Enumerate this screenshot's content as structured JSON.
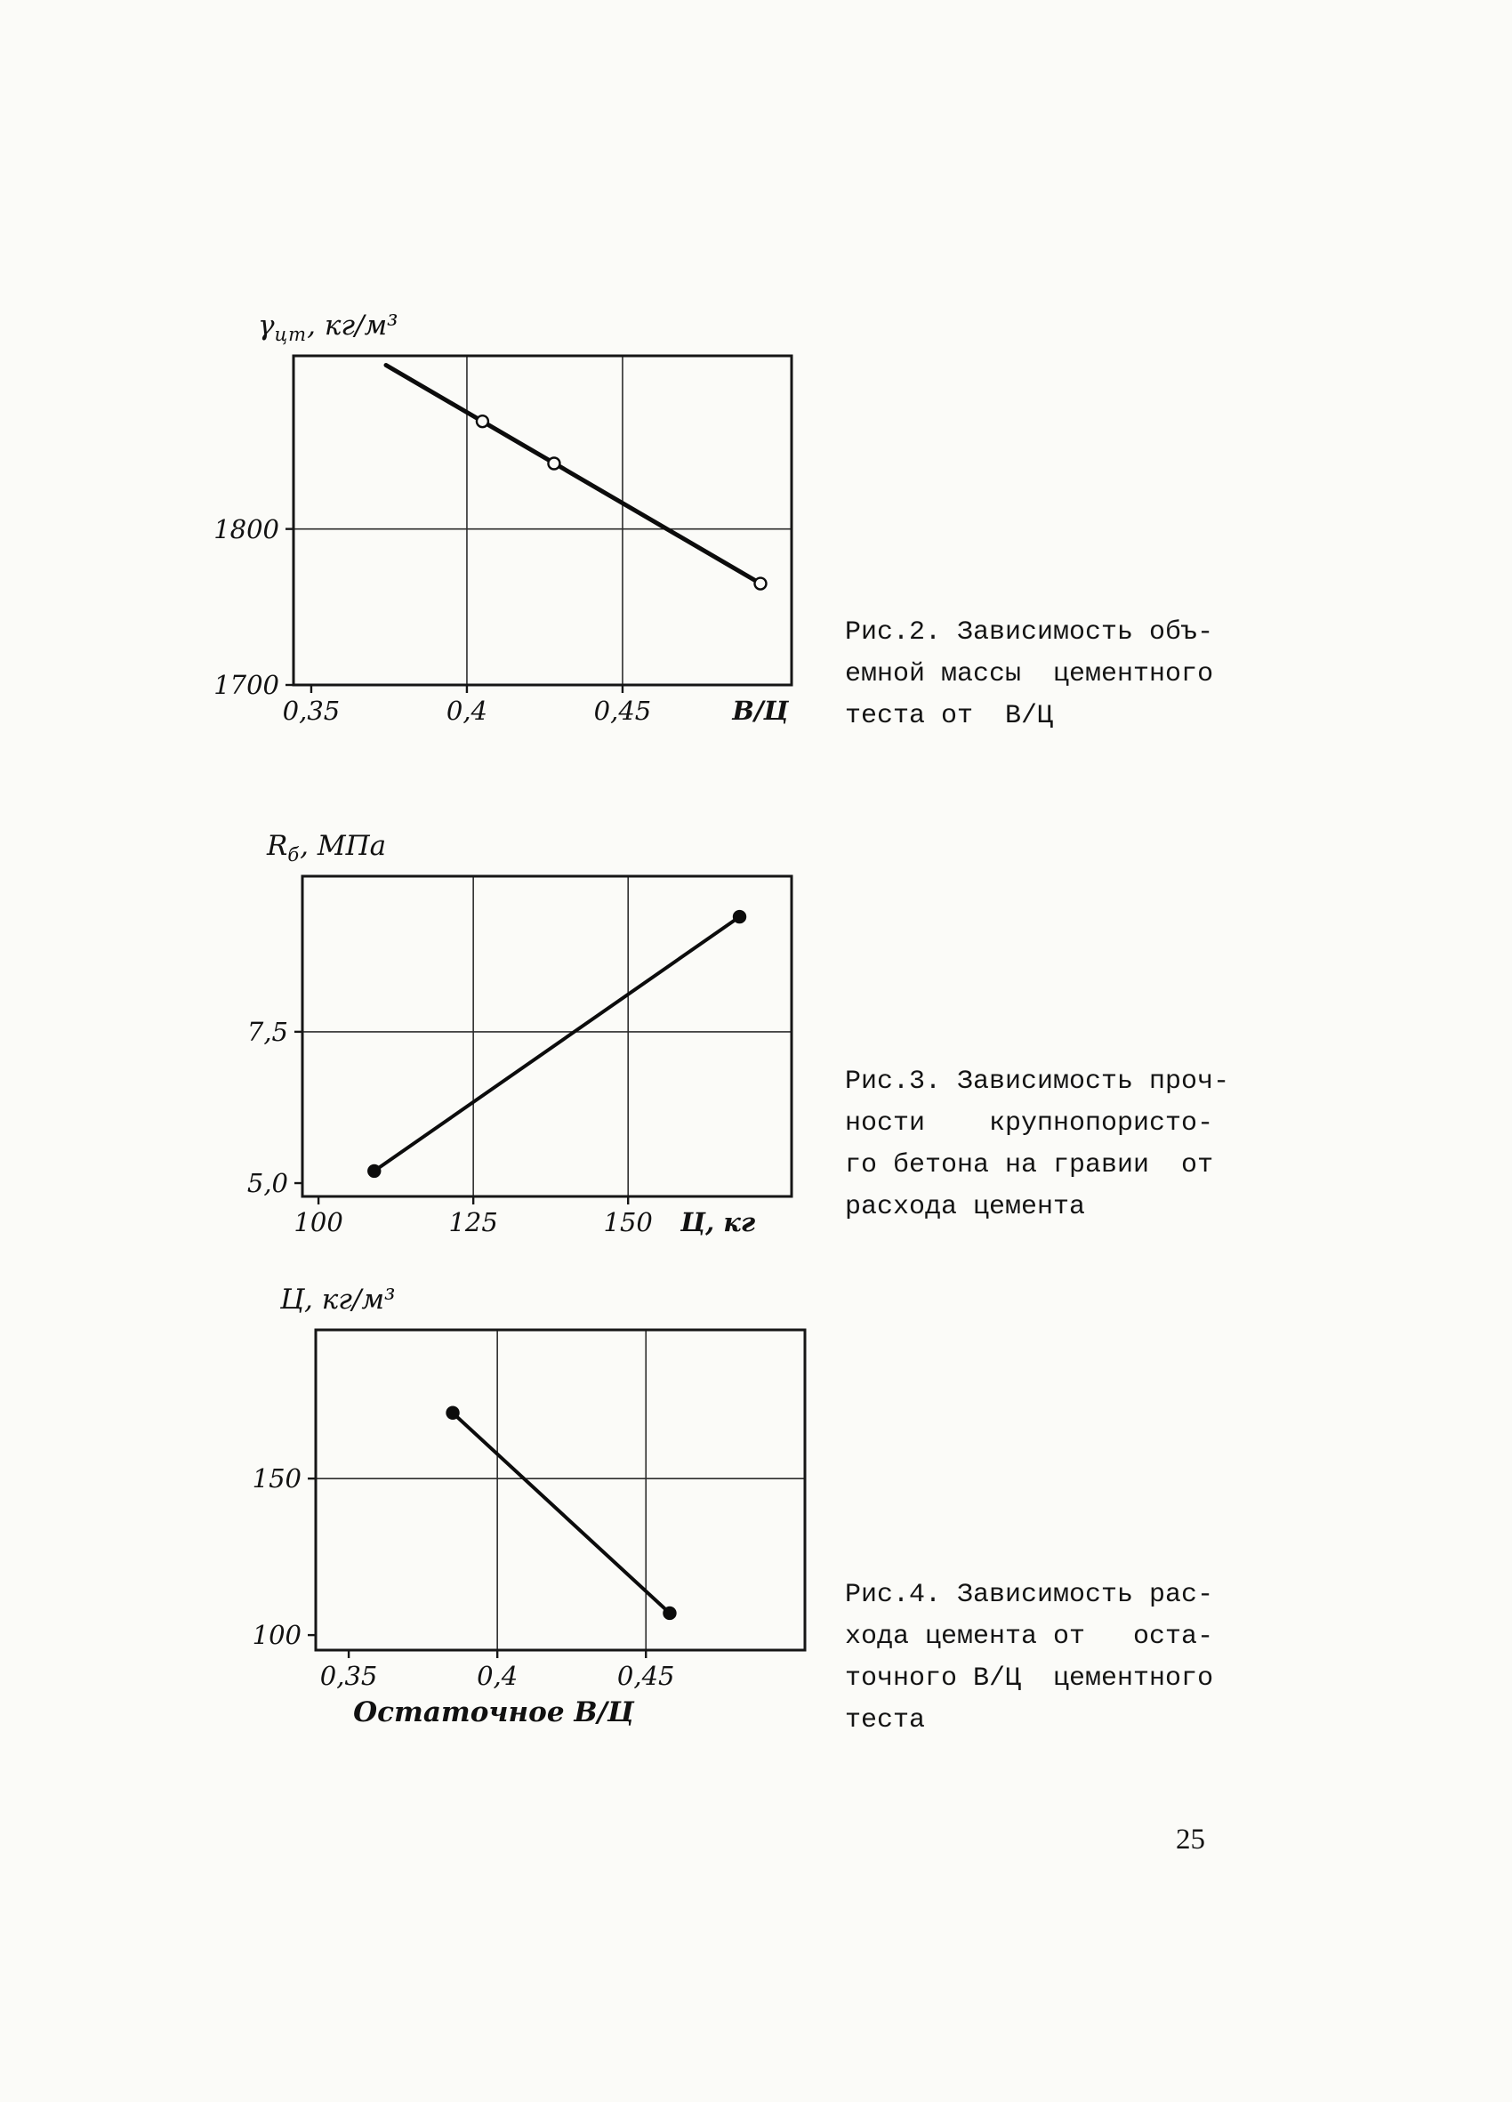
{
  "page": {
    "number": "25"
  },
  "chart_data": [
    {
      "id": "fig-2",
      "type": "line",
      "title": "Зависимость объемной массы цементного теста от В/Ц",
      "y_title": {
        "main": "γ",
        "sub": "цт",
        "rest": ", кг/м³"
      },
      "x_label": "В/Ц",
      "ylabel": "объемная масса цементного теста, кг/м³",
      "x_range": [
        0.3443,
        0.5043
      ],
      "y_range": [
        1700,
        1911
      ],
      "grid_x": [
        0.4,
        0.45
      ],
      "grid_y": [
        1800
      ],
      "x_ticks": [
        {
          "label": "0,35",
          "value": 0.35
        },
        {
          "label": "0,4",
          "value": 0.4
        },
        {
          "label": "0,45",
          "value": 0.45
        },
        {
          "label": "В/Ц",
          "value": 0.4943,
          "tick": false,
          "em": true
        }
      ],
      "y_ticks": [
        {
          "label": "1800",
          "value": 1800
        },
        {
          "label": "1700",
          "value": 1700
        }
      ],
      "line": [
        [
          0.374,
          1905
        ],
        [
          0.4943,
          1765
        ]
      ],
      "markers": [
        [
          0.405,
          1869
        ],
        [
          0.428,
          1842
        ],
        [
          0.4943,
          1765
        ]
      ],
      "marker_style": "open",
      "line_width": 5
    },
    {
      "id": "fig-3",
      "type": "line",
      "title": "Зависимость прочности крупнопористого бетона на гравии от расхода цемента",
      "y_title": {
        "main": "R",
        "sub": "б",
        "rest": ", МПа"
      },
      "x_label": "Ц, кг",
      "ylabel": "прочность бетона, МПа",
      "x_range": [
        97.4,
        176.4
      ],
      "y_range": [
        4.78,
        10.07
      ],
      "grid_x": [
        125,
        150
      ],
      "grid_y": [
        7.5
      ],
      "x_ticks": [
        {
          "label": "100",
          "value": 100
        },
        {
          "label": "125",
          "value": 125
        },
        {
          "label": "150",
          "value": 150
        },
        {
          "label": "Ц, кг",
          "value": 164.5,
          "tick": false,
          "em": true
        }
      ],
      "y_ticks": [
        {
          "label": "7,5",
          "value": 7.5
        },
        {
          "label": "5,0",
          "value": 5.0
        }
      ],
      "line": [
        [
          109,
          5.2
        ],
        [
          168,
          9.4
        ]
      ],
      "markers": [
        [
          109,
          5.2
        ],
        [
          168,
          9.4
        ]
      ],
      "marker_style": "filled",
      "line_width": 4
    },
    {
      "id": "fig-4",
      "type": "line",
      "title": "Зависимость расхода цемента от остаточного В/Ц цементного теста",
      "y_title": {
        "main": "Ц",
        "sub": "",
        "rest": ", кг/м³"
      },
      "x_title": "Остаточное В/Ц",
      "ylabel": "расход цемента, кг/м³",
      "x_range": [
        0.3389,
        0.5035
      ],
      "y_range": [
        95.2,
        197.5
      ],
      "grid_x": [
        0.4,
        0.45
      ],
      "grid_y": [
        150
      ],
      "x_ticks": [
        {
          "label": "0,35",
          "value": 0.35
        },
        {
          "label": "0,4",
          "value": 0.4
        },
        {
          "label": "0,45",
          "value": 0.45
        }
      ],
      "y_ticks": [
        {
          "label": "150",
          "value": 150
        },
        {
          "label": "100",
          "value": 100
        }
      ],
      "line": [
        [
          0.385,
          171
        ],
        [
          0.458,
          107
        ]
      ],
      "markers": [
        [
          0.385,
          171
        ],
        [
          0.458,
          107
        ]
      ],
      "marker_style": "filled",
      "line_width": 4
    }
  ],
  "captions": [
    {
      "id": "fig-2",
      "lines": [
        "Рис.2. Зависимость объ-",
        "емной массы  цементного",
        "теста от  В/Ц"
      ]
    },
    {
      "id": "fig-3",
      "lines": [
        "Рис.3. Зависимость проч-",
        "ности    крупнопористо-",
        "го бетона на гравии  от",
        "расхода цемента"
      ]
    },
    {
      "id": "fig-4",
      "lines": [
        "Рис.4. Зависимость рас-",
        "хода цемента от   оста-",
        "точного В/Ц  цементного",
        "теста"
      ]
    }
  ]
}
